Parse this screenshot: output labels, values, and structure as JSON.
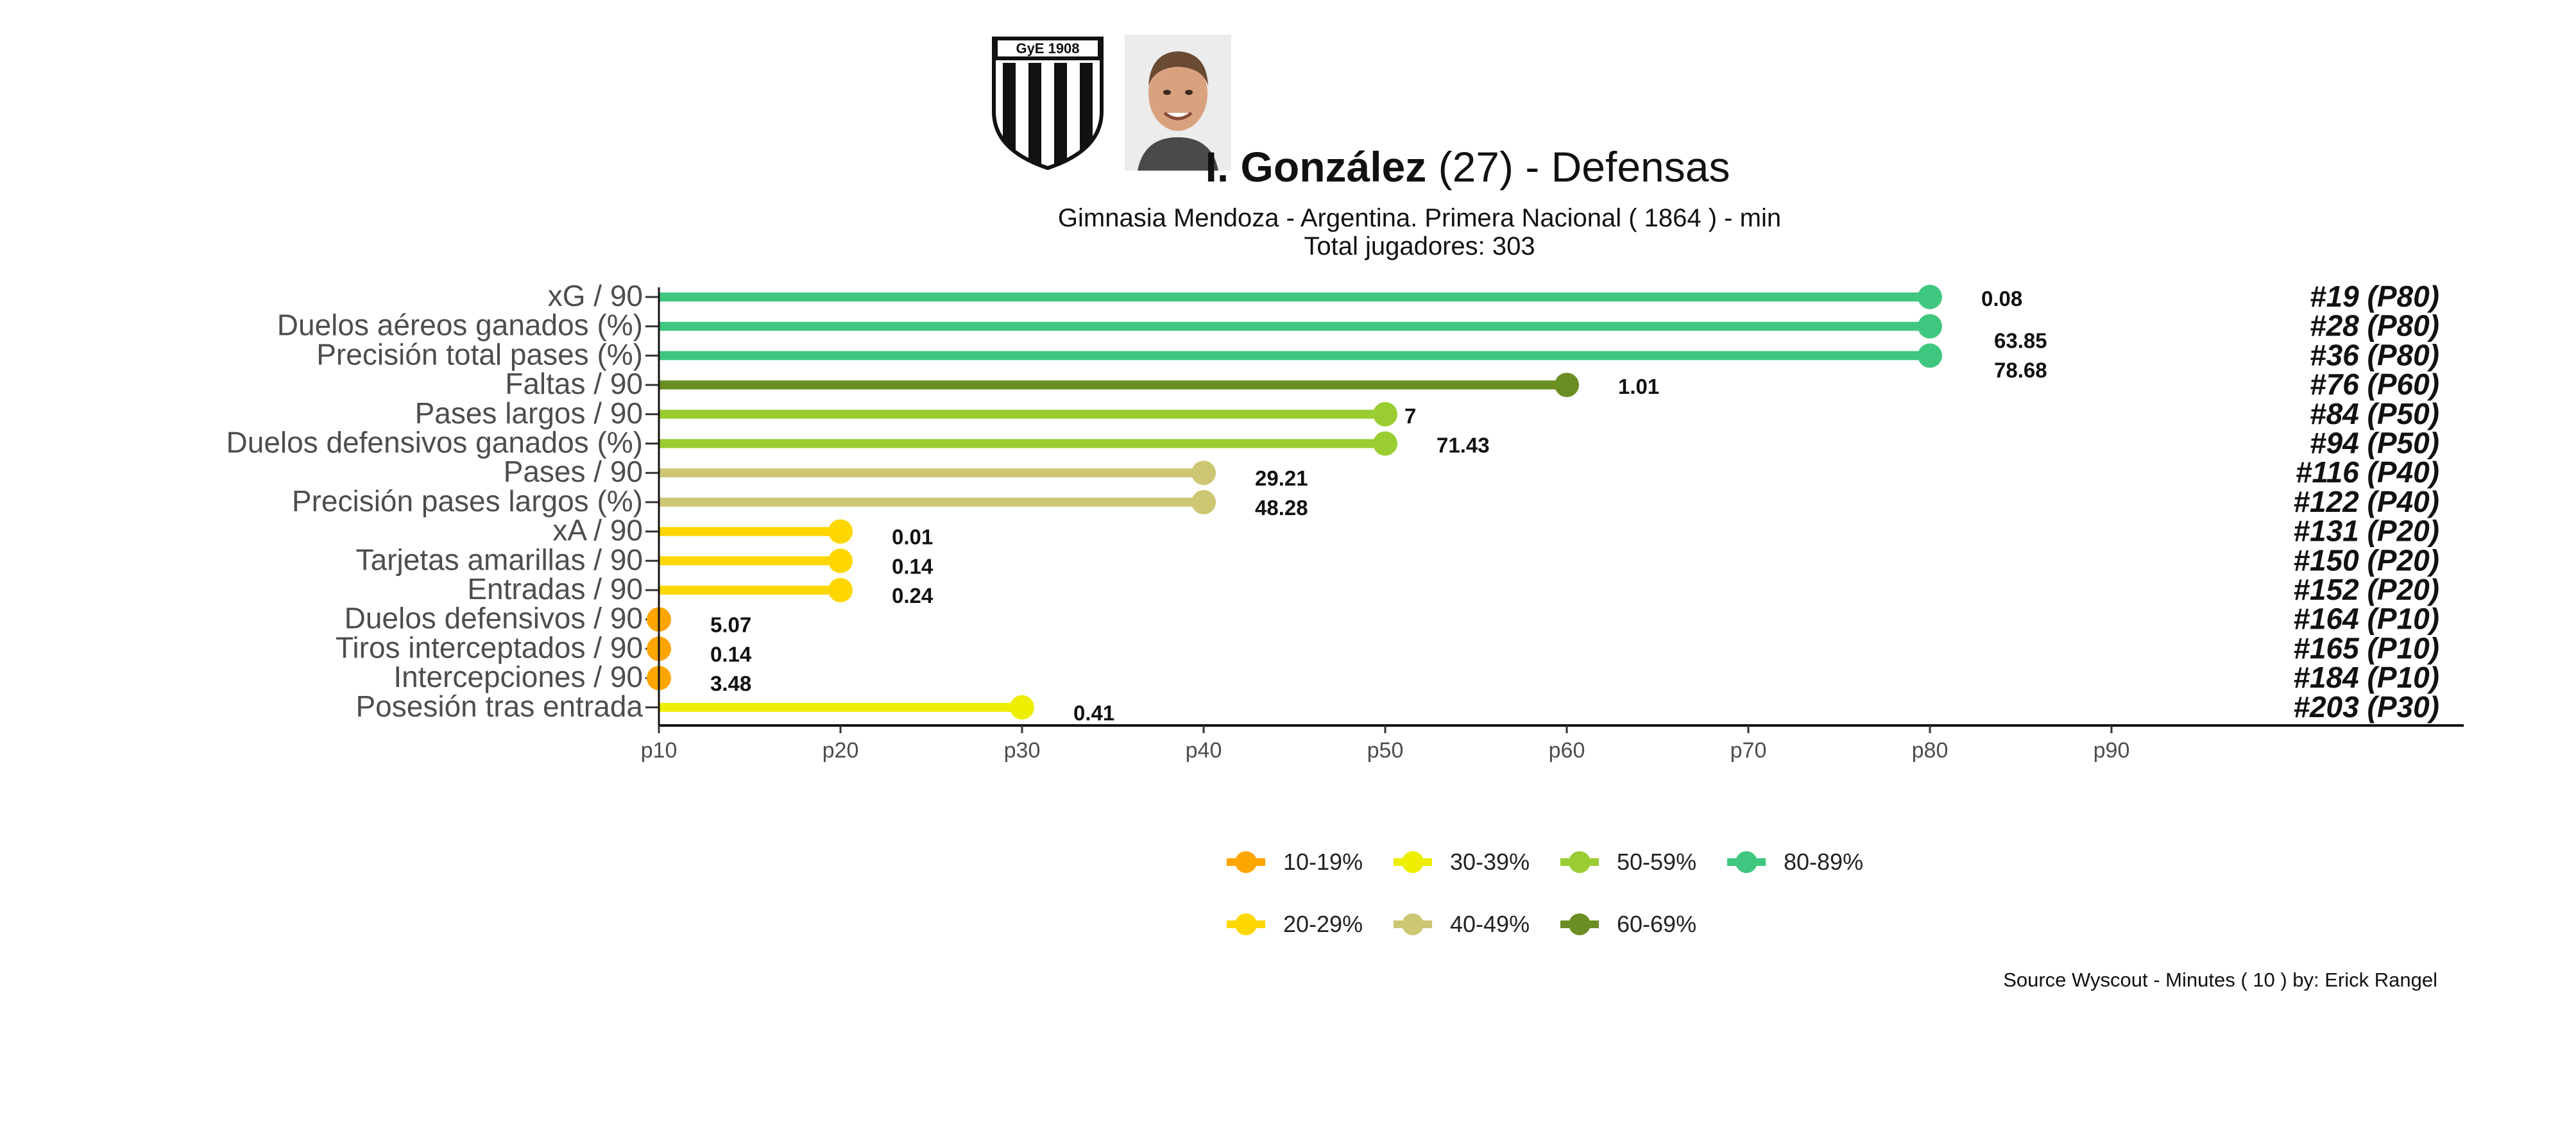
{
  "header": {
    "player_name": "I. González",
    "age": "(27) -",
    "position": "Defensas",
    "subtitle": "Gimnasia Mendoza  -  Argentina. Primera Nacional  ( 1864 ) - min",
    "players_label": "Total jugadores:  303",
    "crest_text": "GyE 1908"
  },
  "source": "Source Wyscout - Minutes ( 10 ) by: Erick Rangel",
  "chart_data": {
    "type": "lollipop",
    "x_ticks": [
      "p10",
      "p20",
      "p30",
      "p40",
      "p50",
      "p60",
      "p70",
      "p80",
      "p90"
    ],
    "xlim": [
      10,
      90
    ],
    "grid": false,
    "rows": [
      {
        "label": "xG / 90",
        "percentile": 80,
        "value_label": "0.08",
        "rank_label": "#19 (P80)",
        "color": "#3fc77f"
      },
      {
        "label": "Duelos aéreos ganados (%)",
        "percentile": 80,
        "value_label": "63.85",
        "rank_label": "#28 (P80)",
        "color": "#3fc77f"
      },
      {
        "label": "Precisión total pases (%)",
        "percentile": 80,
        "value_label": "78.68",
        "rank_label": "#36 (P80)",
        "color": "#3fc77f"
      },
      {
        "label": "Faltas / 90",
        "percentile": 60,
        "value_label": "1.01",
        "rank_label": "#76 (P60)",
        "color": "#6b8e23"
      },
      {
        "label": "Pases largos / 90",
        "percentile": 50,
        "value_label": "7",
        "rank_label": "#84 (P50)",
        "color": "#9acd32"
      },
      {
        "label": "Duelos defensivos ganados (%)",
        "percentile": 50,
        "value_label": "71.43",
        "rank_label": "#94 (P50)",
        "color": "#9acd32"
      },
      {
        "label": "Pases / 90",
        "percentile": 40,
        "value_label": "29.21",
        "rank_label": "#116 (P40)",
        "color": "#cdc673"
      },
      {
        "label": "Precisión pases largos (%)",
        "percentile": 40,
        "value_label": "48.28",
        "rank_label": "#122 (P40)",
        "color": "#cdc673"
      },
      {
        "label": "xA / 90",
        "percentile": 20,
        "value_label": "0.01",
        "rank_label": "#131 (P20)",
        "color": "#ffd700"
      },
      {
        "label": "Tarjetas amarillas / 90",
        "percentile": 20,
        "value_label": "0.14",
        "rank_label": "#150 (P20)",
        "color": "#ffd700"
      },
      {
        "label": "Entradas / 90",
        "percentile": 20,
        "value_label": "0.24",
        "rank_label": "#152 (P20)",
        "color": "#ffd700"
      },
      {
        "label": "Duelos defensivos / 90",
        "percentile": 10,
        "value_label": "5.07",
        "rank_label": "#164 (P10)",
        "color": "#ffa500"
      },
      {
        "label": "Tiros interceptados / 90",
        "percentile": 10,
        "value_label": "0.14",
        "rank_label": "#165 (P10)",
        "color": "#ffa500"
      },
      {
        "label": "Intercepciones / 90",
        "percentile": 10,
        "value_label": "3.48",
        "rank_label": "#184 (P10)",
        "color": "#ffa500"
      },
      {
        "label": "Posesión tras entrada",
        "percentile": 30,
        "value_label": "0.41",
        "rank_label": "#203 (P30)",
        "color": "#eeee00"
      }
    ],
    "legend": [
      {
        "label": "10-19%",
        "color": "#ffa500"
      },
      {
        "label": "20-29%",
        "color": "#ffd700"
      },
      {
        "label": "30-39%",
        "color": "#eeee00"
      },
      {
        "label": "40-49%",
        "color": "#cdc673"
      },
      {
        "label": "50-59%",
        "color": "#9acd32"
      },
      {
        "label": "60-69%",
        "color": "#6b8e23"
      },
      {
        "label": "80-89%",
        "color": "#3fc77f"
      }
    ],
    "legend_position": "bottom"
  }
}
